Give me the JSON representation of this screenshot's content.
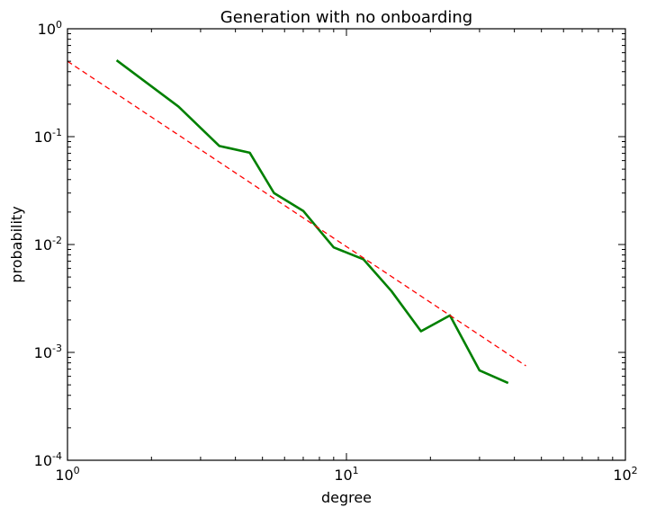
{
  "chart_data": {
    "type": "line",
    "title": "Generation with no onboarding",
    "xlabel": "degree",
    "ylabel": "probability",
    "x_scale": "log",
    "y_scale": "log",
    "xlim": [
      1,
      100
    ],
    "ylim": [
      0.0001,
      1
    ],
    "grid": false,
    "legend": "none",
    "x_ticks": [
      {
        "value": 1,
        "base": "10",
        "exp": "0"
      },
      {
        "value": 10,
        "base": "10",
        "exp": "1"
      },
      {
        "value": 100,
        "base": "10",
        "exp": "2"
      }
    ],
    "y_ticks": [
      {
        "value": 0.0001,
        "base": "10",
        "exp": "-4"
      },
      {
        "value": 0.001,
        "base": "10",
        "exp": "-3"
      },
      {
        "value": 0.01,
        "base": "10",
        "exp": "-2"
      },
      {
        "value": 0.1,
        "base": "10",
        "exp": "-1"
      },
      {
        "value": 1,
        "base": "10",
        "exp": "0"
      }
    ],
    "series": [
      {
        "color": "#008000",
        "style": "solid",
        "x": [
          1.5,
          2.5,
          3.5,
          4.5,
          5.5,
          7,
          9,
          11.5,
          14.5,
          18.5,
          23.5,
          30,
          38
        ],
        "y": [
          0.51,
          0.19,
          0.082,
          0.071,
          0.03,
          0.0205,
          0.0094,
          0.0073,
          0.0037,
          0.00157,
          0.0022,
          0.00068,
          0.00052
        ]
      },
      {
        "color": "#ff0000",
        "style": "dashed",
        "x": [
          1,
          44
        ],
        "y": [
          0.5,
          0.00075
        ]
      }
    ]
  }
}
